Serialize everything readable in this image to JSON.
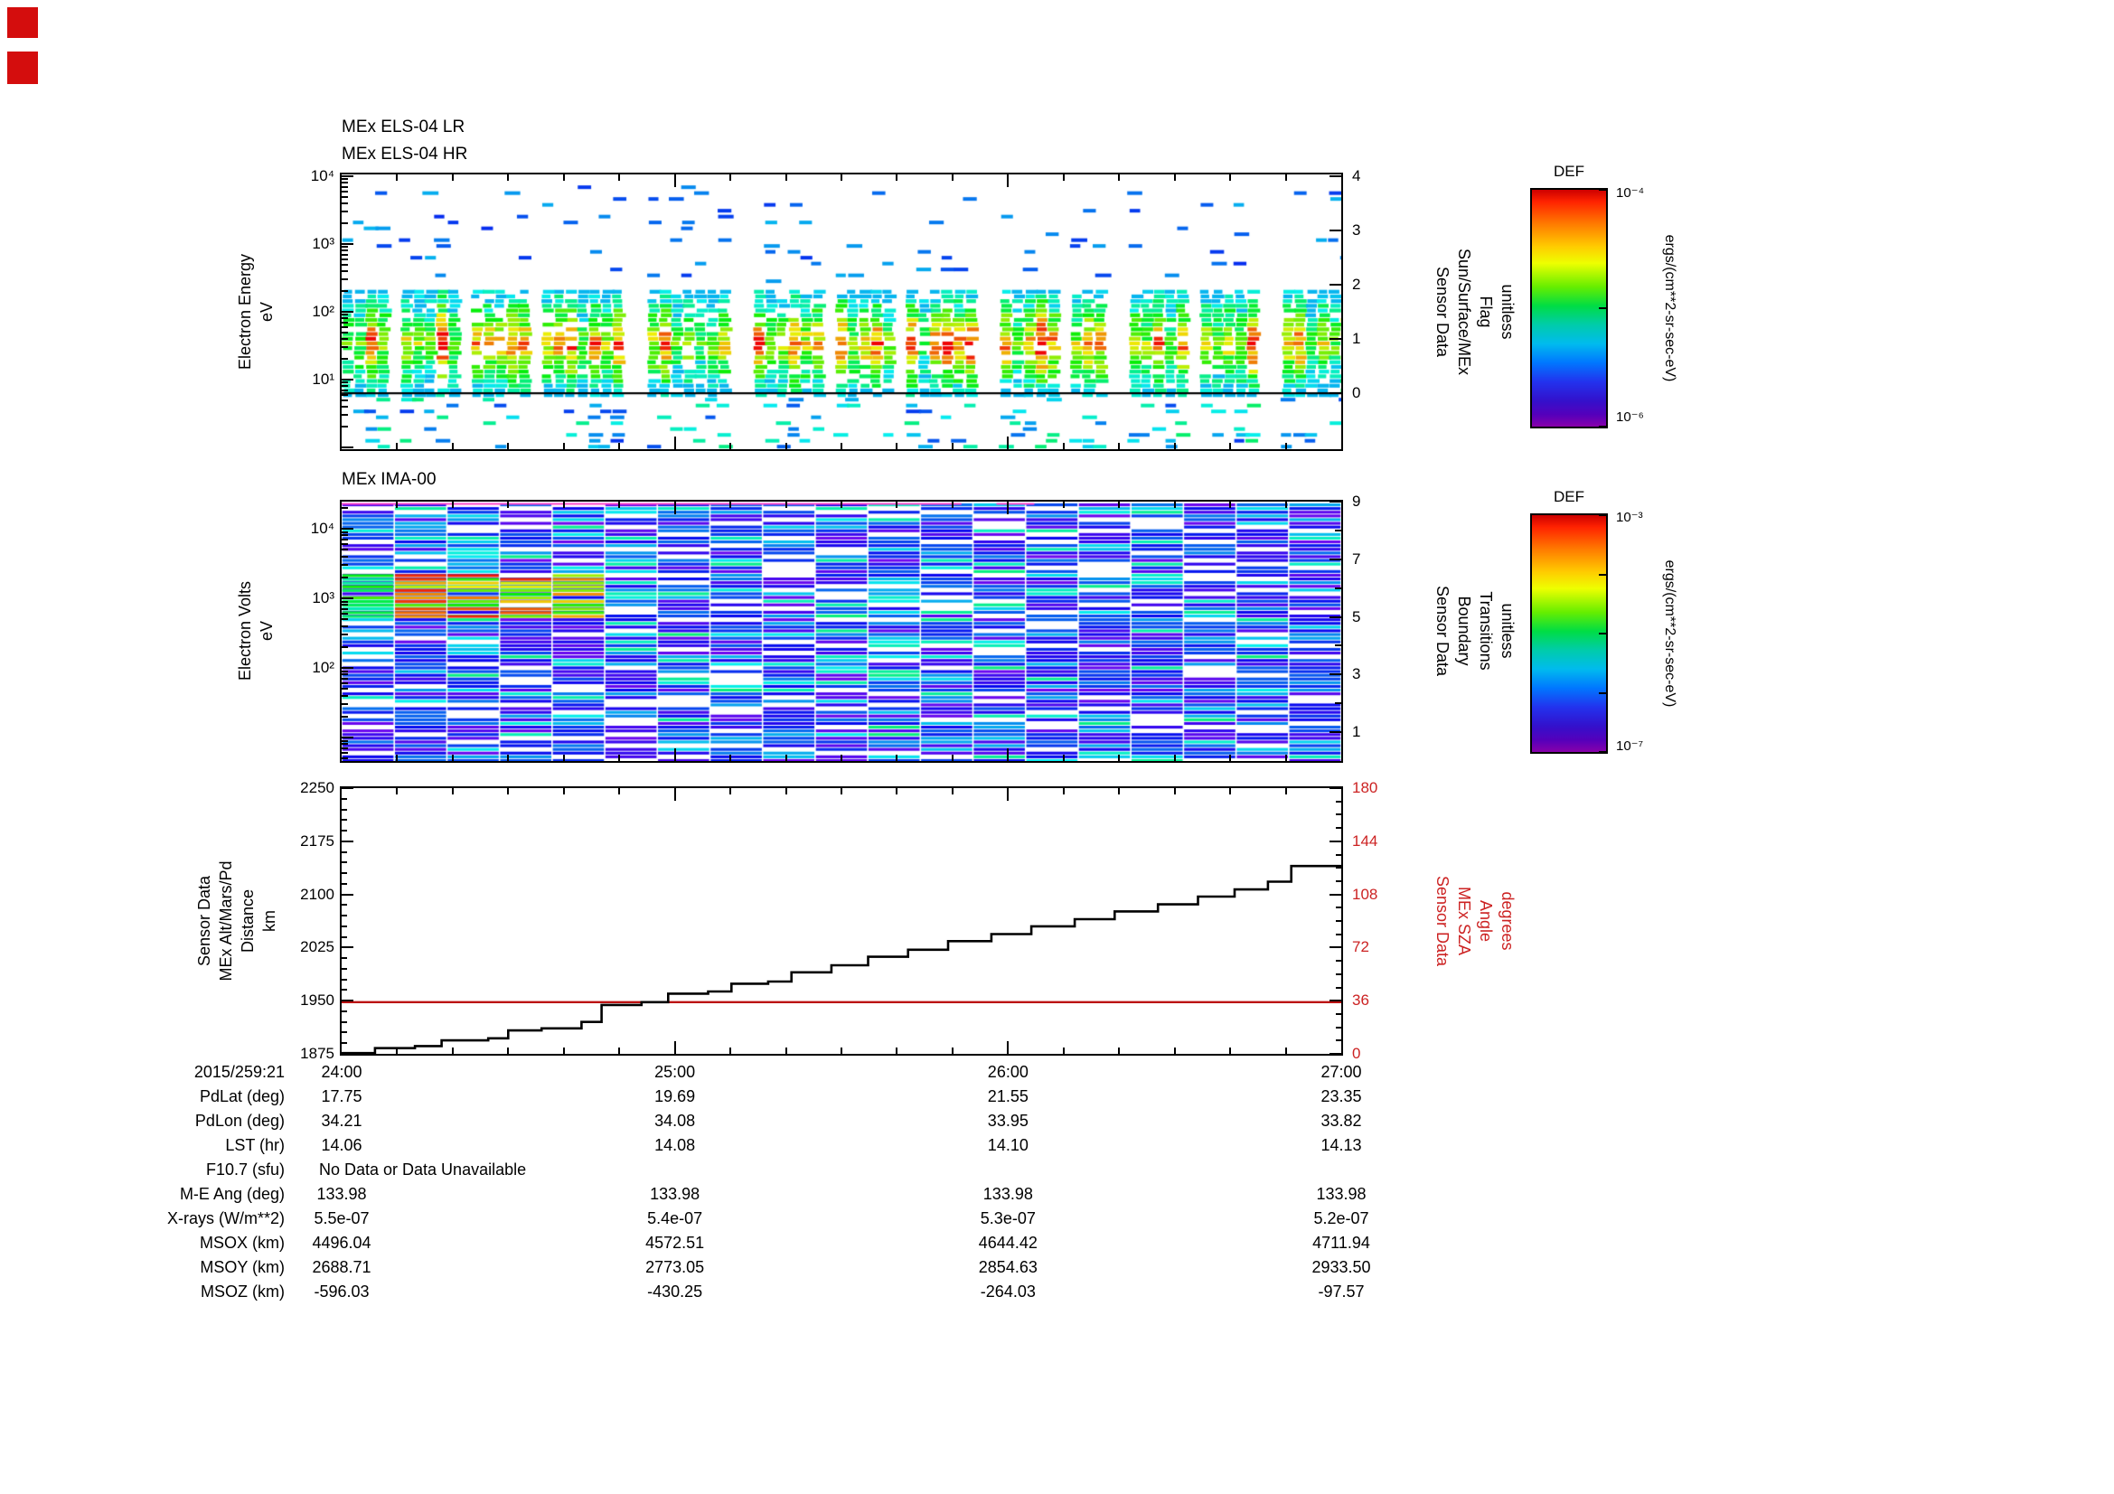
{
  "panel_els": {
    "title_lr": "MEx ELS-04 LR",
    "title_hr": "MEx ELS-04 HR",
    "ylabel_lines": [
      "Electron Energy",
      "eV"
    ],
    "ytick_labels": [
      "10⁴",
      "10³",
      "10²",
      "10¹"
    ],
    "right_label_lines": [
      "Sensor Data",
      "Sun/Surface/MEx",
      "Flag",
      "unitless"
    ],
    "right_ticks": [
      "4",
      "3",
      "2",
      "1",
      "0"
    ]
  },
  "panel_ima": {
    "title": "MEx IMA-00",
    "ylabel_lines": [
      "Electron Volts",
      "eV"
    ],
    "ytick_labels": [
      "10⁴",
      "10³",
      "10²"
    ],
    "right_label_lines": [
      "Sensor Data",
      "Boundary",
      "Transitions",
      "unitless"
    ],
    "right_ticks": [
      "9",
      "7",
      "5",
      "3",
      "1"
    ]
  },
  "panel_alt": {
    "ylabel_lines": [
      "Sensor Data",
      "MEx Alt/Mars/Pd",
      "Distance",
      "km"
    ],
    "ytick_labels": [
      "2250",
      "2175",
      "2100",
      "2025",
      "1950",
      "1875"
    ],
    "right_label_lines": [
      "Sensor Data",
      "MEx SZA",
      "Angle",
      "degrees"
    ],
    "right_ticks": [
      "180",
      "144",
      "108",
      "72",
      "36",
      "0"
    ],
    "right_color": "#cc2222"
  },
  "xaxis": {
    "tick_labels": [
      "24:00",
      "25:00",
      "26:00",
      "27:00"
    ]
  },
  "colorbar1": {
    "title": "DEF",
    "top_label": "10⁻⁴",
    "bottom_label": "10⁻⁶",
    "unit": "ergs/(cm**2-sr-sec-eV)"
  },
  "colorbar2": {
    "title": "DEF",
    "top_label": "10⁻³",
    "bottom_label": "10⁻⁷",
    "unit": "ergs/(cm**2-sr-sec-eV)"
  },
  "table": {
    "time_label": "2015/259:21",
    "rows": [
      {
        "label": "PdLat (deg)",
        "values": [
          "17.75",
          "19.69",
          "21.55",
          "23.35"
        ]
      },
      {
        "label": "PdLon (deg)",
        "values": [
          "34.21",
          "34.08",
          "33.95",
          "33.82"
        ]
      },
      {
        "label": "LST (hr)",
        "values": [
          "14.06",
          "14.08",
          "14.10",
          "14.13"
        ]
      },
      {
        "label": "F10.7 (sfu)",
        "values": [],
        "note": "No Data or Data Unavailable"
      },
      {
        "label": "M-E Ang (deg)",
        "values": [
          "133.98",
          "133.98",
          "133.98",
          "133.98"
        ]
      },
      {
        "label": "X-rays (W/m**2)",
        "values": [
          "5.5e-07",
          "5.4e-07",
          "5.3e-07",
          "5.2e-07"
        ]
      },
      {
        "label": "MSOX (km)",
        "values": [
          "4496.04",
          "4572.51",
          "4644.42",
          "4711.94"
        ]
      },
      {
        "label": "MSOY (km)",
        "values": [
          "2688.71",
          "2773.05",
          "2854.63",
          "2933.50"
        ]
      },
      {
        "label": "MSOZ (km)",
        "values": [
          "-596.03",
          "-430.25",
          "-264.03",
          "-97.57"
        ]
      }
    ]
  },
  "chart_data": [
    {
      "type": "heatmap",
      "panel": "ELS",
      "title": "MEx ELS-04 LR / MEx ELS-04 HR",
      "xlabel_ticks": [
        "24:00",
        "25:00",
        "26:00",
        "27:00"
      ],
      "ylabel": "Electron Energy (eV)",
      "yscale": "log",
      "ylim": [
        1,
        10000
      ],
      "colorbar": {
        "title": "DEF",
        "units": "ergs/(cm**2-sr-sec-eV)",
        "min": "1e-6",
        "max": "1e-4"
      },
      "right_axis": {
        "label": "Sensor Data Sun/Surface/MEx Flag (unitless)",
        "ylim": [
          0,
          4
        ],
        "flag_line_value": 0
      },
      "summary": "Dense high-flux band (green/yellow/red) between ~10 and ~300 eV with periodic white time gaps; sparse low-flux blue dashes up to ~6000 eV and below 10 eV; horizontal black flag line at flag=0."
    },
    {
      "type": "heatmap",
      "panel": "IMA",
      "title": "MEx IMA-00",
      "ylabel": "Electron Volts (eV)",
      "yscale": "log",
      "ylim": [
        5,
        25000
      ],
      "colorbar": {
        "title": "DEF",
        "units": "ergs/(cm**2-sr-sec-eV)",
        "min": "1e-7",
        "max": "1e-3"
      },
      "right_axis": {
        "label": "Sensor Data Boundary Transitions (unitless)",
        "ylim": [
          0,
          9
        ]
      },
      "summary": "Columnar spectrogram dominated by low-flux blue/violet stripes with white dropouts; bright green-to-red enhancement near 1-2 keV during the first ~15 minutes; magenta marker line along the top edge."
    },
    {
      "type": "line",
      "panel": "ALT",
      "xlim_hours": [
        24,
        27
      ],
      "left_axis": {
        "label": "Sensor Data MEx Alt/Mars/Pd Distance (km)",
        "ylim": [
          1875,
          2250
        ]
      },
      "right_axis": {
        "label": "Sensor Data MEx SZA Angle (degrees)",
        "ylim": [
          0,
          180
        ],
        "color": "#cc2222"
      },
      "series": [
        {
          "name": "MEx Alt/Mars/Pd Distance",
          "color": "#000000",
          "style": "steps-post",
          "points": [
            [
              24.0,
              1876
            ],
            [
              24.1,
              1883
            ],
            [
              24.22,
              1886
            ],
            [
              24.3,
              1894
            ],
            [
              24.44,
              1897
            ],
            [
              24.5,
              1908
            ],
            [
              24.6,
              1911
            ],
            [
              24.72,
              1920
            ],
            [
              24.78,
              1944
            ],
            [
              24.9,
              1948
            ],
            [
              24.98,
              1960
            ],
            [
              25.1,
              1963
            ],
            [
              25.17,
              1974
            ],
            [
              25.28,
              1977
            ],
            [
              25.35,
              1990
            ],
            [
              25.47,
              2000
            ],
            [
              25.58,
              2012
            ],
            [
              25.7,
              2022
            ],
            [
              25.82,
              2034
            ],
            [
              25.95,
              2044
            ],
            [
              26.07,
              2055
            ],
            [
              26.2,
              2065
            ],
            [
              26.32,
              2076
            ],
            [
              26.45,
              2086
            ],
            [
              26.57,
              2097
            ],
            [
              26.68,
              2107
            ],
            [
              26.78,
              2118
            ],
            [
              26.85,
              2140
            ],
            [
              27.0,
              2140
            ]
          ]
        },
        {
          "name": "MEx SZA Angle",
          "color": "#bb1111",
          "style": "constant",
          "value": 35
        }
      ]
    }
  ]
}
